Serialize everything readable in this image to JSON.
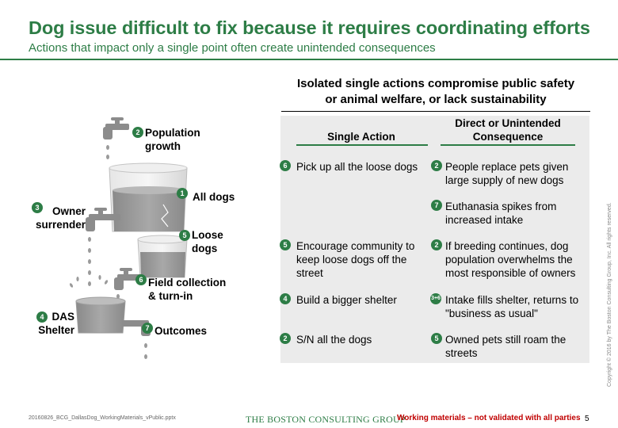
{
  "header": {
    "title": "Dog issue difficult to fix because it requires coordinating efforts",
    "subtitle": "Actions that impact only a single point often create unintended consequences"
  },
  "diagram": {
    "labels": [
      {
        "id": "population",
        "badge": "2",
        "text": "Population\ngrowth"
      },
      {
        "id": "all-dogs",
        "badge": "1",
        "text": "All dogs"
      },
      {
        "id": "owner-surrender",
        "badge": "3",
        "text": "Owner\nsurrender"
      },
      {
        "id": "loose-dogs",
        "badge": "5",
        "text": "Loose\ndogs"
      },
      {
        "id": "field-collection",
        "badge": "6",
        "text": "Field collection\n& turn-in"
      },
      {
        "id": "das-shelter",
        "badge": "4",
        "text": "DAS\nShelter"
      },
      {
        "id": "outcomes",
        "badge": "7",
        "text": "Outcomes"
      }
    ],
    "colors": {
      "accent": "#2d7d46",
      "water": "#9a9a9a",
      "pipe": "#8c8c8c",
      "glass": "#d9d9d9"
    }
  },
  "panel": {
    "heading": "Isolated single actions compromise public safety\nor animal welfare, or lack sustainability",
    "col_action": "Single Action",
    "col_consequence": "Direct or Unintended\nConsequence",
    "rows": [
      {
        "action_badge": "6",
        "action": "Pick up all the loose dogs",
        "cons_badge": "2",
        "consequence": "People replace pets given\nlarge supply of new dogs"
      },
      {
        "action_badge": "",
        "action": "",
        "cons_badge": "7",
        "consequence": "Euthanasia spikes from\nincreased intake"
      },
      {
        "action_badge": "5",
        "action": "Encourage community to\nkeep loose dogs off the\nstreet",
        "cons_badge": "2",
        "consequence": "If breeding continues, dog\npopulation overwhelms the\nmost responsible of owners"
      },
      {
        "action_badge": "4",
        "action": "Build a bigger shelter",
        "cons_badge": "3+6",
        "consequence": "Intake fills shelter, returns to\n\"business as usual\""
      },
      {
        "action_badge": "2",
        "action": "S/N all the dogs",
        "cons_badge": "5",
        "consequence": "Owned pets still roam the\nstreets"
      }
    ]
  },
  "footer": {
    "file": "20160826_BCG_DallasDog_WorkingMaterials_vPublic.pptx",
    "company": "THE BOSTON CONSULTING GROUP",
    "note": "Working materials – not validated with all parties",
    "page": "5",
    "copyright": "Copyright © 2016 by The Boston Consulting Group, Inc. All rights reserved."
  }
}
